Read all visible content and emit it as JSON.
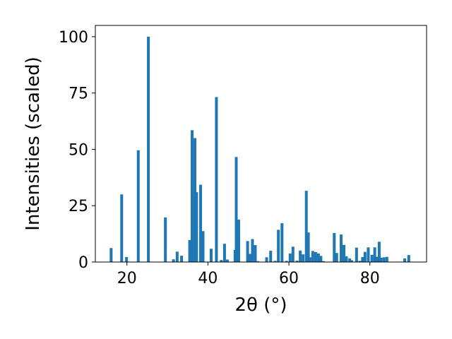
{
  "chart_data": {
    "type": "bar",
    "title": "",
    "xlabel": "2θ (°)",
    "ylabel": "Intensities (scaled)",
    "bar_color": "#1f77b4",
    "xlim": [
      12.2,
      94.0
    ],
    "ylim": [
      0,
      105
    ],
    "grid": false,
    "legend": "none",
    "xticks": [
      20,
      40,
      60,
      80
    ],
    "yticks": [
      0,
      25,
      50,
      75,
      100
    ],
    "bar_width": 0.7,
    "x": [
      16.1,
      18.7,
      19.9,
      22.8,
      25.3,
      29.5,
      31.5,
      32.4,
      33.5,
      35.5,
      36.1,
      36.8,
      37.2,
      38.2,
      38.8,
      40.8,
      42.1,
      43.3,
      44.1,
      44.8,
      46.7,
      47.0,
      47.6,
      49.8,
      50.4,
      51.0,
      51.7,
      52.3,
      54.5,
      55.5,
      56.6,
      57.4,
      58.3,
      59.4,
      60.3,
      61.0,
      62.0,
      62.8,
      63.5,
      64.3,
      64.8,
      65.2,
      65.9,
      66.6,
      67.3,
      67.9,
      68.5,
      71.2,
      71.8,
      72.9,
      73.6,
      74.2,
      75.0,
      75.5,
      76.7,
      77.5,
      78.2,
      78.8,
      79.6,
      80.5,
      81.2,
      81.7,
      82.3,
      82.8,
      83.5,
      84.2,
      88.6,
      89.6
    ],
    "values": [
      6.2,
      30,
      2.2,
      49.6,
      100,
      19.8,
      1.2,
      4.6,
      2.8,
      9.8,
      58.5,
      55,
      31,
      34.3,
      13.7,
      5.9,
      73.2,
      0.9,
      8.1,
      1.1,
      5.4,
      46.6,
      18.8,
      9.3,
      3.6,
      10.2,
      7.5,
      0.4,
      2.1,
      5,
      0.5,
      14.3,
      17.2,
      0.5,
      3.8,
      6.8,
      0.6,
      5.1,
      3.4,
      31.6,
      13.1,
      2.1,
      4.9,
      4.4,
      3.8,
      2.7,
      0.4,
      12.9,
      4,
      12.2,
      7.6,
      2.5,
      1.6,
      0.8,
      6.4,
      0.5,
      2.2,
      4.5,
      6.5,
      3.2,
      6.5,
      2.3,
      9,
      1.9,
      2.1,
      2.3,
      1.6,
      3.1
    ]
  }
}
